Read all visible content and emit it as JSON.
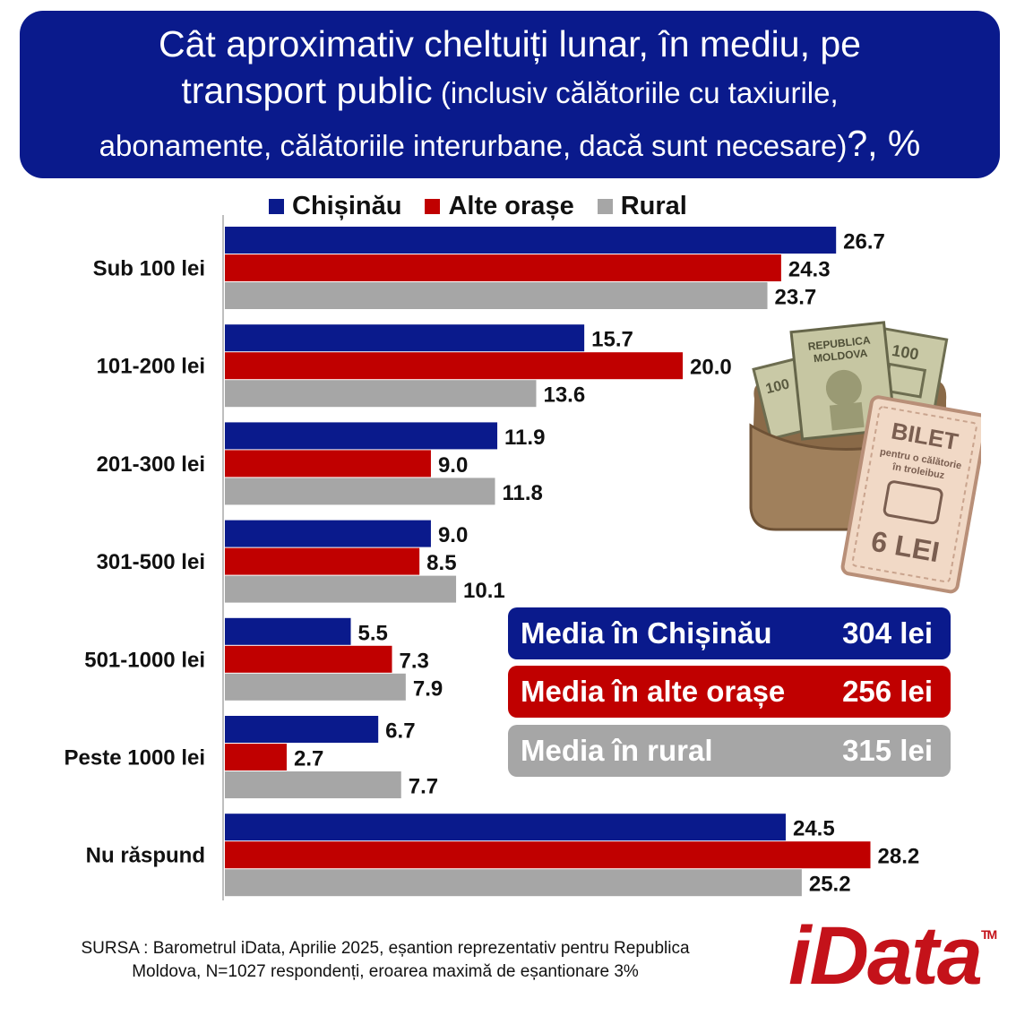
{
  "title": {
    "line1": "Cât aproximativ cheltuiți lunar, în mediu, pe",
    "line2_big": "transport public",
    "line2_small": " (inclusiv călătoriile cu taxiurile,",
    "line3_small": "abonamente, călătoriile interurbane, dacă sunt necesare)",
    "line3_big": "?, %"
  },
  "colors": {
    "chisinau": "#0a1a8c",
    "alte_orase": "#c00000",
    "rural": "#a6a6a6",
    "title_bg": "#0a1a8c"
  },
  "chart_data": {
    "type": "bar",
    "orientation": "horizontal",
    "categories": [
      "Sub 100 lei",
      "101-200 lei",
      "201-300 lei",
      "301-500 lei",
      "501-1000 lei",
      "Peste 1000 lei",
      "Nu răspund"
    ],
    "series": [
      {
        "name": "Chișinău",
        "values": [
          26.7,
          15.7,
          11.9,
          9.0,
          5.5,
          6.7,
          24.5
        ],
        "labels": [
          "26.7",
          "15.7",
          "11.9",
          "9.0",
          "5.5",
          "6.7",
          "24.5"
        ]
      },
      {
        "name": "Alte orașe",
        "values": [
          24.3,
          20.0,
          9.0,
          8.5,
          7.3,
          2.7,
          28.2
        ],
        "labels": [
          "24.3",
          "20.0",
          "9.0",
          "8.5",
          "7.3",
          "2.7",
          "28.2"
        ]
      },
      {
        "name": "Rural",
        "values": [
          23.7,
          13.6,
          11.8,
          10.1,
          7.9,
          7.7,
          25.2
        ],
        "labels": [
          "23.7",
          "13.6",
          "11.8",
          "10.1",
          "7.9",
          "7.7",
          "25.2"
        ]
      }
    ],
    "xlim": [
      0,
      30
    ],
    "legend_position": "top",
    "grid": false
  },
  "averages": [
    {
      "label": "Media în Chișinău",
      "value": "304 lei",
      "color": "#0a1a8c"
    },
    {
      "label": "Media în alte orașe",
      "value": "256 lei",
      "color": "#c00000"
    },
    {
      "label": "Media în rural",
      "value": "315 lei",
      "color": "#a6a6a6"
    }
  ],
  "illustration": {
    "banknote_country_line1": "REPUBLICA",
    "banknote_country_line2": "MOLDOVA",
    "banknote_value": "100",
    "ticket_title": "BILET",
    "ticket_line1": "pentru o călătorie",
    "ticket_line2": "în troleibuz",
    "ticket_price": "6 LEI"
  },
  "source": {
    "line1": "SURSA : Barometrul iData, Aprilie 2025, eșantion reprezentativ pentru Republica",
    "line2": "Moldova, N=1027 respondenți, eroarea maximă de eșantionare 3%"
  },
  "logo": {
    "text": "iData",
    "tm": "TM"
  }
}
